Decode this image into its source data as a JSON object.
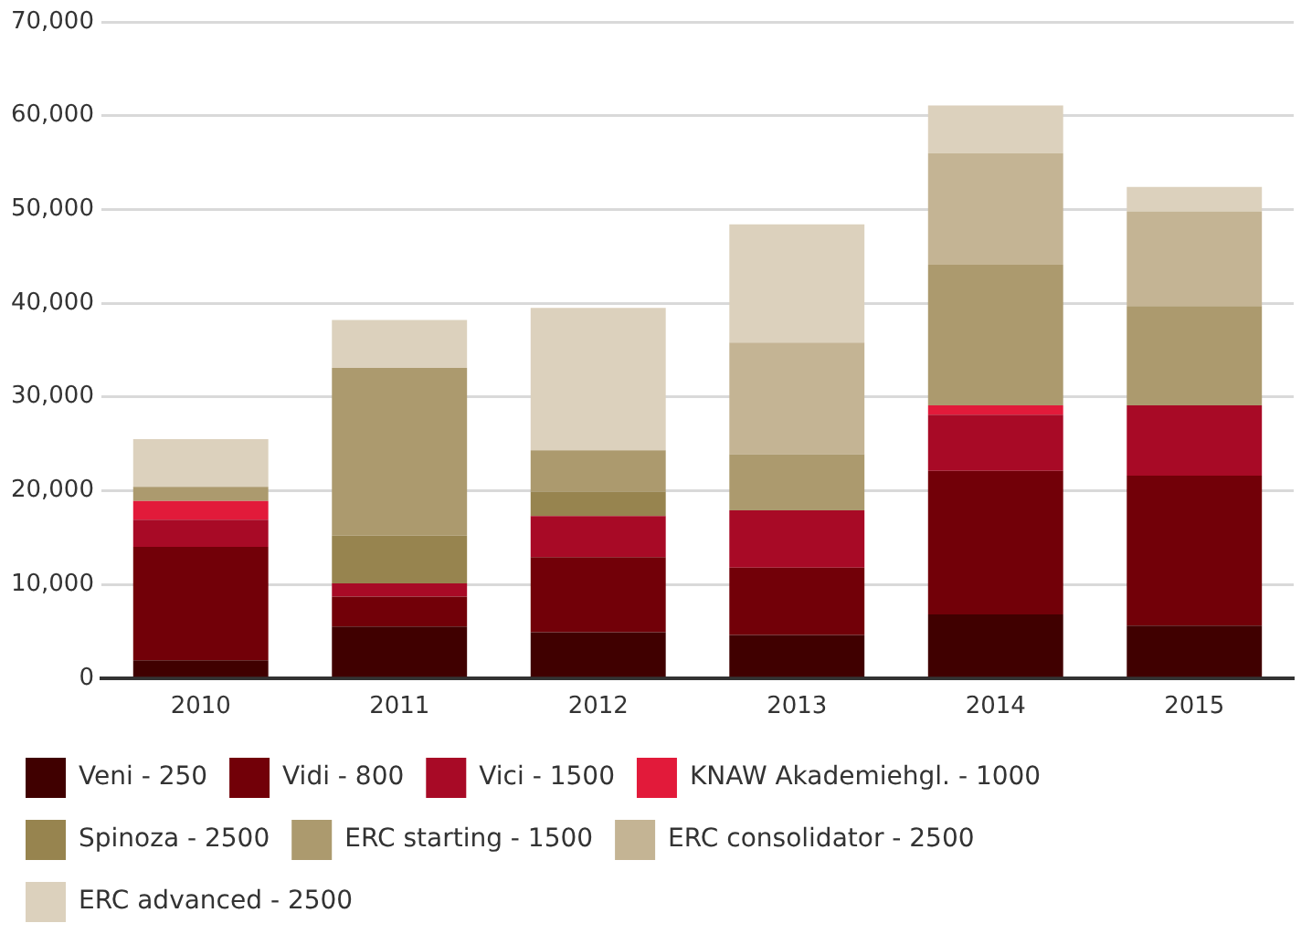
{
  "chart_data": {
    "type": "bar",
    "stacked": true,
    "categories": [
      "2010",
      "2011",
      "2012",
      "2013",
      "2014",
      "2015"
    ],
    "series": [
      {
        "name": "Veni - 250",
        "color": "#400000",
        "values": [
          1900,
          5500,
          4900,
          4600,
          6800,
          5600
        ]
      },
      {
        "name": "Vidi - 800",
        "color": "#720008",
        "values": [
          12100,
          3200,
          8000,
          7200,
          15300,
          16000
        ]
      },
      {
        "name": "Vici - 1500",
        "color": "#a80a26",
        "values": [
          2900,
          1400,
          4400,
          6100,
          6000,
          7500
        ]
      },
      {
        "name": "KNAW Akademiehgl. - 1000",
        "color": "#e21a3a",
        "values": [
          2000,
          0,
          0,
          0,
          1000,
          0
        ]
      },
      {
        "name": "Spinoza - 2500",
        "color": "#97844f",
        "values": [
          0,
          5100,
          2600,
          0,
          0,
          0
        ]
      },
      {
        "name": "ERC starting - 1500",
        "color": "#ac9a6e",
        "values": [
          1500,
          17900,
          4400,
          6000,
          15000,
          10600
        ]
      },
      {
        "name": "ERC consolidator - 2500",
        "color": "#c4b494",
        "values": [
          0,
          0,
          0,
          11900,
          11900,
          10100
        ]
      },
      {
        "name": "ERC advanced - 2500",
        "color": "#dcd1bd",
        "values": [
          5100,
          5100,
          15200,
          12600,
          5100,
          2600
        ]
      }
    ],
    "ylim": [
      0,
      70000
    ],
    "yticks": [
      {
        "value": 0,
        "label": "0"
      },
      {
        "value": 10000,
        "label": "10,000"
      },
      {
        "value": 20000,
        "label": "20,000"
      },
      {
        "value": 30000,
        "label": "30,000"
      },
      {
        "value": 40000,
        "label": "40,000"
      },
      {
        "value": 50000,
        "label": "50,000"
      },
      {
        "value": 60000,
        "label": "60,000"
      },
      {
        "value": 70000,
        "label": "70,000"
      }
    ],
    "grid": "y",
    "legend": "bottom"
  }
}
